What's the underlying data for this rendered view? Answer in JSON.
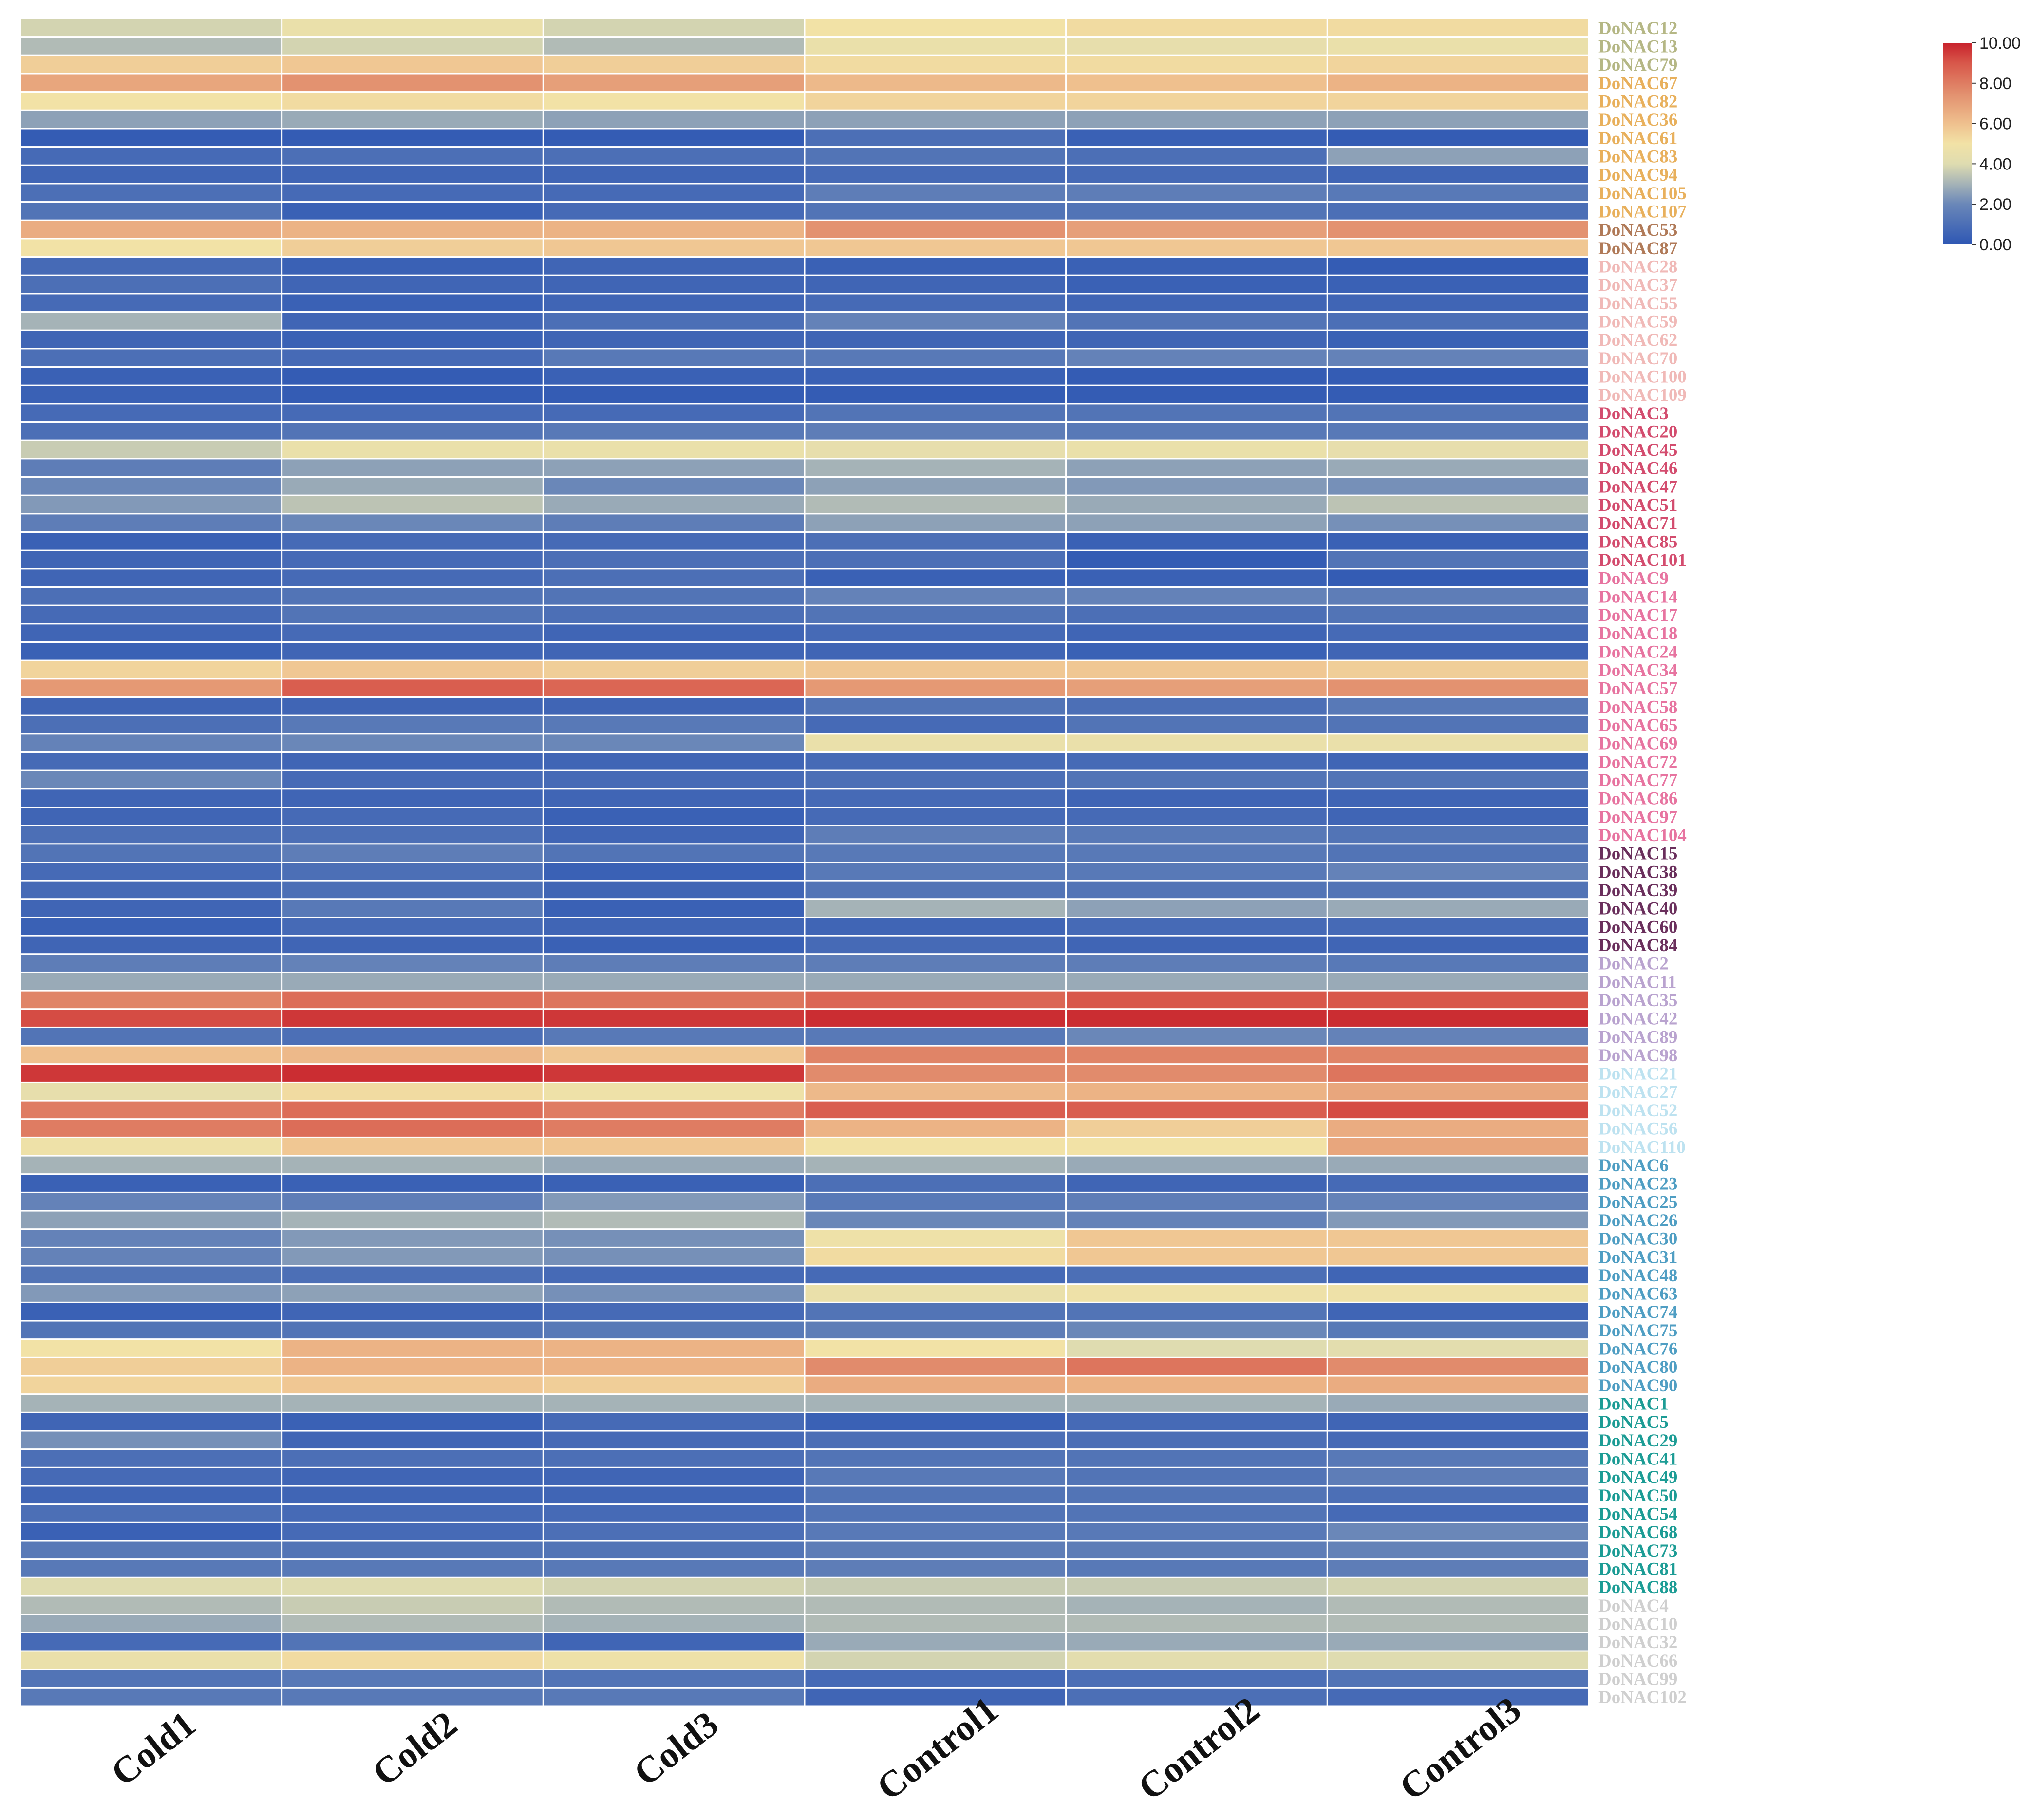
{
  "chart_data": {
    "type": "heatmap",
    "columns": [
      "Cold1",
      "Cold2",
      "Cold3",
      "Control1",
      "Control2",
      "Control3"
    ],
    "rows": [
      {
        "name": "DoNAC12",
        "group": "g1",
        "values": [
          3.8,
          4.6,
          3.8,
          5.0,
          5.2,
          5.2
        ]
      },
      {
        "name": "DoNAC13",
        "group": "g1",
        "values": [
          3.2,
          3.8,
          3.2,
          4.6,
          4.4,
          4.6
        ]
      },
      {
        "name": "DoNAC79",
        "group": "g1",
        "values": [
          5.6,
          5.8,
          5.6,
          5.2,
          5.2,
          5.4
        ]
      },
      {
        "name": "DoNAC67",
        "group": "g2",
        "values": [
          6.8,
          7.4,
          7.0,
          6.2,
          6.0,
          6.4
        ]
      },
      {
        "name": "DoNAC82",
        "group": "g2",
        "values": [
          5.0,
          5.2,
          5.0,
          5.4,
          5.4,
          5.4
        ]
      },
      {
        "name": "DoNAC36",
        "group": "g2",
        "values": [
          2.6,
          2.8,
          2.6,
          2.6,
          2.6,
          2.6
        ]
      },
      {
        "name": "DoNAC61",
        "group": "g2",
        "values": [
          0.2,
          0.2,
          0.2,
          1.0,
          0.4,
          0.2
        ]
      },
      {
        "name": "DoNAC83",
        "group": "g2",
        "values": [
          0.8,
          1.0,
          1.0,
          1.2,
          1.0,
          2.6
        ]
      },
      {
        "name": "DoNAC94",
        "group": "g2",
        "values": [
          0.6,
          0.6,
          0.6,
          0.8,
          0.8,
          0.6
        ]
      },
      {
        "name": "DoNAC105",
        "group": "g2",
        "values": [
          1.0,
          0.8,
          0.8,
          1.6,
          1.6,
          1.4
        ]
      },
      {
        "name": "DoNAC107",
        "group": "g2",
        "values": [
          1.2,
          0.4,
          0.8,
          1.2,
          1.2,
          1.0
        ]
      },
      {
        "name": "DoNAC53",
        "group": "g3",
        "values": [
          6.6,
          6.4,
          6.4,
          7.4,
          7.0,
          7.4
        ]
      },
      {
        "name": "DoNAC87",
        "group": "g3",
        "values": [
          5.0,
          5.6,
          5.8,
          5.8,
          5.8,
          5.8
        ]
      },
      {
        "name": "DoNAC28",
        "group": "g4",
        "values": [
          0.8,
          0.4,
          0.6,
          0.4,
          0.4,
          0.2
        ]
      },
      {
        "name": "DoNAC37",
        "group": "g4",
        "values": [
          1.0,
          0.6,
          0.6,
          0.6,
          0.4,
          0.4
        ]
      },
      {
        "name": "DoNAC55",
        "group": "g4",
        "values": [
          0.8,
          0.4,
          0.6,
          0.8,
          0.6,
          0.6
        ]
      },
      {
        "name": "DoNAC59",
        "group": "g4",
        "values": [
          3.0,
          0.6,
          1.0,
          1.8,
          1.2,
          1.0
        ]
      },
      {
        "name": "DoNAC62",
        "group": "g4",
        "values": [
          0.6,
          0.4,
          0.6,
          0.6,
          0.6,
          0.4
        ]
      },
      {
        "name": "DoNAC70",
        "group": "g4",
        "values": [
          1.0,
          0.8,
          1.4,
          1.4,
          1.8,
          1.8
        ]
      },
      {
        "name": "DoNAC100",
        "group": "g4",
        "values": [
          0.4,
          0.2,
          0.4,
          0.4,
          0.2,
          0.2
        ]
      },
      {
        "name": "DoNAC109",
        "group": "g4",
        "values": [
          0.4,
          0.2,
          0.2,
          0.2,
          0.2,
          0.2
        ]
      },
      {
        "name": "DoNAC3",
        "group": "g5",
        "values": [
          0.8,
          0.8,
          0.8,
          1.2,
          1.2,
          1.2
        ]
      },
      {
        "name": "DoNAC20",
        "group": "g5",
        "values": [
          1.0,
          1.2,
          1.4,
          1.6,
          1.4,
          1.4
        ]
      },
      {
        "name": "DoNAC45",
        "group": "g5",
        "values": [
          3.6,
          4.6,
          4.6,
          4.4,
          4.6,
          4.4
        ]
      },
      {
        "name": "DoNAC46",
        "group": "g5",
        "values": [
          1.6,
          2.6,
          2.6,
          3.0,
          2.6,
          2.8
        ]
      },
      {
        "name": "DoNAC47",
        "group": "g5",
        "values": [
          2.0,
          2.8,
          2.0,
          2.6,
          2.4,
          2.2
        ]
      },
      {
        "name": "DoNAC51",
        "group": "g5",
        "values": [
          2.4,
          3.4,
          2.8,
          3.2,
          2.8,
          3.4
        ]
      },
      {
        "name": "DoNAC71",
        "group": "g5",
        "values": [
          1.6,
          2.0,
          1.6,
          2.6,
          2.6,
          2.2
        ]
      },
      {
        "name": "DoNAC85",
        "group": "g5",
        "values": [
          0.4,
          0.8,
          0.8,
          1.0,
          0.4,
          0.4
        ]
      },
      {
        "name": "DoNAC101",
        "group": "g5",
        "values": [
          0.6,
          0.8,
          1.0,
          1.0,
          0.2,
          1.2
        ]
      },
      {
        "name": "DoNAC9",
        "group": "g6",
        "values": [
          0.6,
          0.8,
          1.0,
          0.4,
          0.4,
          0.2
        ]
      },
      {
        "name": "DoNAC14",
        "group": "g6",
        "values": [
          1.0,
          1.2,
          1.2,
          1.8,
          1.8,
          1.6
        ]
      },
      {
        "name": "DoNAC17",
        "group": "g6",
        "values": [
          0.8,
          1.2,
          1.0,
          1.2,
          1.0,
          1.2
        ]
      },
      {
        "name": "DoNAC18",
        "group": "g6",
        "values": [
          0.6,
          0.8,
          0.6,
          0.8,
          0.6,
          0.8
        ]
      },
      {
        "name": "DoNAC24",
        "group": "g6",
        "values": [
          0.4,
          0.6,
          0.6,
          0.6,
          0.4,
          0.6
        ]
      },
      {
        "name": "DoNAC34",
        "group": "g6",
        "values": [
          5.4,
          5.8,
          5.6,
          5.8,
          5.8,
          5.6
        ]
      },
      {
        "name": "DoNAC57",
        "group": "g6",
        "values": [
          7.2,
          8.8,
          8.6,
          7.2,
          7.0,
          7.4
        ]
      },
      {
        "name": "DoNAC58",
        "group": "g6",
        "values": [
          0.6,
          0.6,
          0.6,
          1.2,
          1.0,
          1.4
        ]
      },
      {
        "name": "DoNAC65",
        "group": "g6",
        "values": [
          1.0,
          1.4,
          1.4,
          0.8,
          1.2,
          1.2
        ]
      },
      {
        "name": "DoNAC69",
        "group": "g6",
        "values": [
          1.8,
          2.0,
          2.0,
          4.6,
          4.6,
          4.6
        ]
      },
      {
        "name": "DoNAC72",
        "group": "g6",
        "values": [
          0.8,
          0.6,
          0.6,
          0.8,
          0.8,
          0.6
        ]
      },
      {
        "name": "DoNAC77",
        "group": "g6",
        "values": [
          2.0,
          0.8,
          0.8,
          1.0,
          1.2,
          1.2
        ]
      },
      {
        "name": "DoNAC86",
        "group": "g6",
        "values": [
          0.6,
          0.6,
          0.6,
          0.8,
          0.6,
          0.6
        ]
      },
      {
        "name": "DoNAC97",
        "group": "g6",
        "values": [
          0.6,
          0.8,
          0.4,
          0.8,
          0.8,
          0.6
        ]
      },
      {
        "name": "DoNAC104",
        "group": "g6",
        "values": [
          1.0,
          1.0,
          0.6,
          1.6,
          1.4,
          1.2
        ]
      },
      {
        "name": "DoNAC15",
        "group": "g7",
        "values": [
          1.2,
          1.6,
          1.2,
          1.4,
          1.4,
          1.2
        ]
      },
      {
        "name": "DoNAC38",
        "group": "g7",
        "values": [
          0.8,
          1.0,
          0.4,
          1.4,
          1.4,
          1.8
        ]
      },
      {
        "name": "DoNAC39",
        "group": "g7",
        "values": [
          0.8,
          1.0,
          0.6,
          1.2,
          1.2,
          1.2
        ]
      },
      {
        "name": "DoNAC40",
        "group": "g7",
        "values": [
          0.6,
          1.4,
          0.4,
          3.0,
          2.6,
          2.8
        ]
      },
      {
        "name": "DoNAC60",
        "group": "g7",
        "values": [
          0.4,
          0.8,
          0.6,
          0.6,
          0.8,
          0.8
        ]
      },
      {
        "name": "DoNAC84",
        "group": "g7",
        "values": [
          0.6,
          0.6,
          0.4,
          0.8,
          0.6,
          0.6
        ]
      },
      {
        "name": "DoNAC2",
        "group": "g8",
        "values": [
          1.6,
          1.8,
          1.6,
          1.6,
          1.6,
          1.4
        ]
      },
      {
        "name": "DoNAC11",
        "group": "g8",
        "values": [
          2.8,
          2.8,
          2.8,
          2.8,
          2.8,
          2.8
        ]
      },
      {
        "name": "DoNAC35",
        "group": "g8",
        "values": [
          7.8,
          8.4,
          8.2,
          8.6,
          9.0,
          9.0
        ]
      },
      {
        "name": "DoNAC42",
        "group": "g8",
        "values": [
          9.2,
          9.6,
          9.6,
          9.8,
          9.8,
          9.8
        ]
      },
      {
        "name": "DoNAC89",
        "group": "g8",
        "values": [
          1.2,
          1.0,
          1.4,
          1.4,
          2.0,
          1.8
        ]
      },
      {
        "name": "DoNAC98",
        "group": "g8",
        "values": [
          6.0,
          6.2,
          5.8,
          7.8,
          7.8,
          7.8
        ]
      },
      {
        "name": "DoNAC21",
        "group": "g9",
        "values": [
          9.6,
          9.8,
          9.6,
          7.6,
          7.6,
          8.2
        ]
      },
      {
        "name": "DoNAC27",
        "group": "g9",
        "values": [
          4.4,
          5.2,
          4.8,
          6.2,
          6.4,
          6.8
        ]
      },
      {
        "name": "DoNAC52",
        "group": "g9",
        "values": [
          8.0,
          8.4,
          8.0,
          8.8,
          8.8,
          9.2
        ]
      },
      {
        "name": "DoNAC56",
        "group": "g9",
        "values": [
          8.0,
          8.4,
          8.0,
          6.4,
          5.6,
          6.6
        ]
      },
      {
        "name": "DoNAC110",
        "group": "g9",
        "values": [
          4.8,
          5.8,
          5.8,
          5.0,
          5.0,
          6.8
        ]
      },
      {
        "name": "DoNAC6",
        "group": "g10",
        "values": [
          3.0,
          3.0,
          2.8,
          3.0,
          2.8,
          2.8
        ]
      },
      {
        "name": "DoNAC23",
        "group": "g10",
        "values": [
          0.4,
          0.4,
          0.4,
          1.0,
          0.6,
          0.8
        ]
      },
      {
        "name": "DoNAC25",
        "group": "g10",
        "values": [
          1.8,
          1.6,
          2.4,
          1.4,
          1.6,
          1.8
        ]
      },
      {
        "name": "DoNAC26",
        "group": "g10",
        "values": [
          2.6,
          3.0,
          3.2,
          2.0,
          1.8,
          2.4
        ]
      },
      {
        "name": "DoNAC30",
        "group": "g10",
        "values": [
          1.8,
          2.4,
          2.2,
          4.8,
          5.8,
          5.8
        ]
      },
      {
        "name": "DoNAC31",
        "group": "g10",
        "values": [
          1.8,
          2.4,
          2.2,
          5.2,
          5.8,
          5.8
        ]
      },
      {
        "name": "DoNAC48",
        "group": "g10",
        "values": [
          1.2,
          1.0,
          0.8,
          0.8,
          1.0,
          0.6
        ]
      },
      {
        "name": "DoNAC63",
        "group": "g10",
        "values": [
          2.4,
          2.6,
          2.2,
          4.6,
          4.8,
          4.8
        ]
      },
      {
        "name": "DoNAC74",
        "group": "g10",
        "values": [
          0.4,
          0.6,
          0.8,
          1.2,
          1.2,
          0.6
        ]
      },
      {
        "name": "DoNAC75",
        "group": "g10",
        "values": [
          1.2,
          1.2,
          1.4,
          1.6,
          2.0,
          1.4
        ]
      },
      {
        "name": "DoNAC76",
        "group": "g10",
        "values": [
          5.0,
          6.4,
          6.4,
          5.0,
          4.0,
          4.2
        ]
      },
      {
        "name": "DoNAC80",
        "group": "g10",
        "values": [
          5.6,
          6.4,
          6.4,
          7.6,
          8.2,
          7.6
        ]
      },
      {
        "name": "DoNAC90",
        "group": "g10",
        "values": [
          5.4,
          5.8,
          5.6,
          6.6,
          6.4,
          6.6
        ]
      },
      {
        "name": "DoNAC1",
        "group": "g11",
        "values": [
          3.0,
          3.0,
          3.0,
          3.0,
          3.0,
          2.8
        ]
      },
      {
        "name": "DoNAC5",
        "group": "g11",
        "values": [
          0.6,
          0.4,
          0.8,
          0.4,
          0.8,
          0.6
        ]
      },
      {
        "name": "DoNAC29",
        "group": "g11",
        "values": [
          2.2,
          0.6,
          0.8,
          1.0,
          1.0,
          0.8
        ]
      },
      {
        "name": "DoNAC41",
        "group": "g11",
        "values": [
          1.0,
          1.0,
          1.0,
          1.2,
          1.2,
          1.4
        ]
      },
      {
        "name": "DoNAC49",
        "group": "g11",
        "values": [
          0.8,
          0.6,
          0.6,
          1.4,
          1.2,
          1.6
        ]
      },
      {
        "name": "DoNAC50",
        "group": "g11",
        "values": [
          0.6,
          0.6,
          0.6,
          1.2,
          1.2,
          1.0
        ]
      },
      {
        "name": "DoNAC54",
        "group": "g11",
        "values": [
          1.0,
          0.8,
          0.8,
          1.2,
          1.2,
          0.8
        ]
      },
      {
        "name": "DoNAC68",
        "group": "g11",
        "values": [
          0.4,
          0.8,
          1.0,
          1.4,
          1.4,
          2.0
        ]
      },
      {
        "name": "DoNAC73",
        "group": "g11",
        "values": [
          1.4,
          1.2,
          1.2,
          1.6,
          1.6,
          1.8
        ]
      },
      {
        "name": "DoNAC81",
        "group": "g11",
        "values": [
          1.4,
          1.4,
          1.4,
          1.6,
          1.4,
          1.6
        ]
      },
      {
        "name": "DoNAC88",
        "group": "g11",
        "values": [
          4.0,
          4.0,
          3.8,
          3.6,
          3.6,
          3.8
        ]
      },
      {
        "name": "DoNAC4",
        "group": "g12",
        "values": [
          3.2,
          3.6,
          3.2,
          3.2,
          3.0,
          3.2
        ]
      },
      {
        "name": "DoNAC10",
        "group": "g12",
        "values": [
          2.8,
          3.2,
          3.0,
          3.2,
          3.2,
          3.2
        ]
      },
      {
        "name": "DoNAC32",
        "group": "g12",
        "values": [
          0.8,
          1.2,
          0.6,
          2.8,
          2.8,
          2.8
        ]
      },
      {
        "name": "DoNAC66",
        "group": "g12",
        "values": [
          4.6,
          5.2,
          4.8,
          3.8,
          4.2,
          4.0
        ]
      },
      {
        "name": "DoNAC99",
        "group": "g12",
        "values": [
          1.2,
          1.4,
          1.2,
          0.8,
          1.0,
          1.2
        ]
      },
      {
        "name": "DoNAC102",
        "group": "g12",
        "values": [
          1.4,
          1.4,
          1.4,
          0.6,
          1.0,
          0.8
        ]
      }
    ],
    "group_colors": {
      "g1": "#b5b785",
      "g2": "#e8b05c",
      "g3": "#b07a58",
      "g4": "#f0b9b7",
      "g5": "#d34c6e",
      "g6": "#e774a0",
      "g7": "#6a2f5c",
      "g8": "#b9a3cf",
      "g9": "#bde2f0",
      "g10": "#4f9ec3",
      "g11": "#1c9c95",
      "g12": "#cfcfcf"
    },
    "color_scale": {
      "min": 0,
      "max": 10,
      "stops": [
        {
          "value": 0,
          "color": "#2e57b4"
        },
        {
          "value": 2,
          "color": "#6a87b8"
        },
        {
          "value": 3,
          "color": "#a5b3b7"
        },
        {
          "value": 4,
          "color": "#dfdcb0"
        },
        {
          "value": 5,
          "color": "#f2e2a6"
        },
        {
          "value": 6,
          "color": "#efc08e"
        },
        {
          "value": 7.5,
          "color": "#e28f6e"
        },
        {
          "value": 9,
          "color": "#d8574a"
        },
        {
          "value": 10,
          "color": "#c8222c"
        }
      ]
    },
    "legend_ticks": [
      "0.00",
      "2.00",
      "4.00",
      "6.00",
      "8.00",
      "10.00"
    ],
    "legend_position": "top-right",
    "grid": true
  }
}
